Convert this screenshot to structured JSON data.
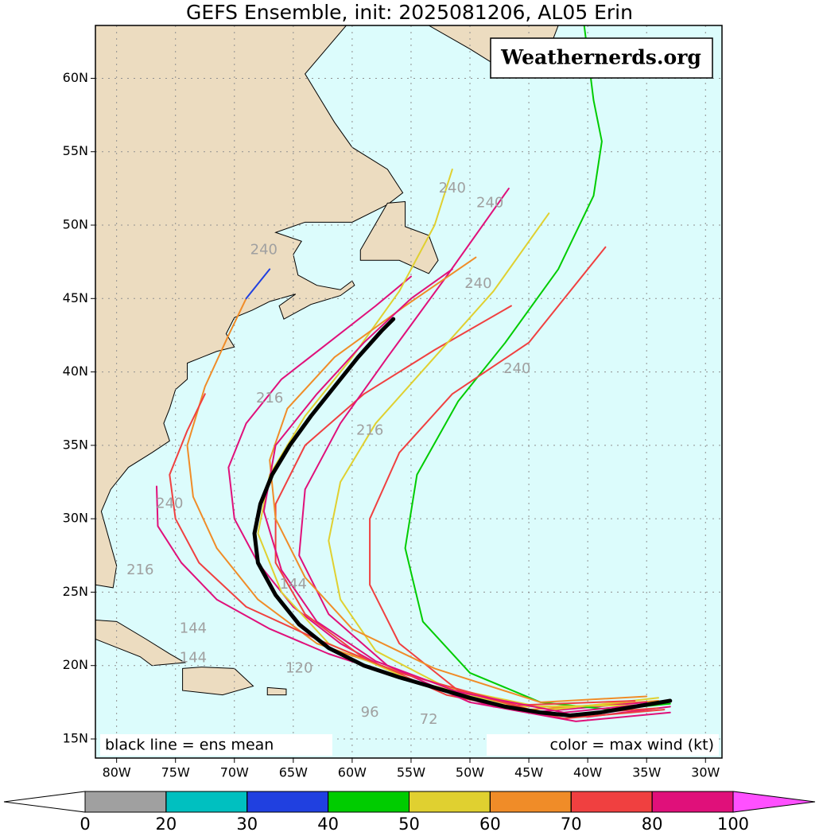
{
  "chart_data": {
    "type": "map",
    "title": "GEFS Ensemble, init: 2025081206, AL05 Erin",
    "watermark": "Weathernerds.org",
    "annotations": [
      "black line = ens mean",
      "color = max wind (kt)"
    ],
    "xlim": [
      -81.8,
      -28.6
    ],
    "ylim": [
      13.7,
      63.6
    ],
    "xticks": [
      {
        "value": -80,
        "label": "80W"
      },
      {
        "value": -75,
        "label": "75W"
      },
      {
        "value": -70,
        "label": "70W"
      },
      {
        "value": -65,
        "label": "65W"
      },
      {
        "value": -60,
        "label": "60W"
      },
      {
        "value": -55,
        "label": "55W"
      },
      {
        "value": -50,
        "label": "50W"
      },
      {
        "value": -45,
        "label": "45W"
      },
      {
        "value": -40,
        "label": "40W"
      },
      {
        "value": -35,
        "label": "35W"
      },
      {
        "value": -30,
        "label": "30W"
      }
    ],
    "yticks": [
      {
        "value": 15,
        "label": "15N"
      },
      {
        "value": 20,
        "label": "20N"
      },
      {
        "value": 25,
        "label": "25N"
      },
      {
        "value": 30,
        "label": "30N"
      },
      {
        "value": 35,
        "label": "35N"
      },
      {
        "value": 40,
        "label": "40N"
      },
      {
        "value": 45,
        "label": "45N"
      },
      {
        "value": 50,
        "label": "50N"
      },
      {
        "value": 55,
        "label": "55N"
      },
      {
        "value": 60,
        "label": "60N"
      }
    ],
    "grid": true,
    "tracks": [
      {
        "color": "#e0107a",
        "lon": [
          -33,
          -40,
          -48,
          -56,
          -61,
          -65,
          -68,
          -70,
          -70.5,
          -69,
          -66,
          -62,
          -58,
          -55
        ],
        "lat": [
          17.2,
          16.5,
          17.2,
          19.3,
          21.5,
          24,
          27,
          30,
          33.5,
          36.5,
          39.5,
          42,
          44.5,
          46.5
        ]
      },
      {
        "color": "#f04040",
        "lon": [
          -33.5,
          -42,
          -52,
          -59,
          -64,
          -66.5,
          -66.5,
          -64,
          -59,
          -53,
          -46.5
        ],
        "lat": [
          17,
          16.4,
          18,
          20.5,
          23.5,
          27,
          31,
          35,
          38.5,
          41.5,
          44.5
        ]
      },
      {
        "color": "#f08c28",
        "lon": [
          -34,
          -45,
          -55,
          -63,
          -68,
          -71.5,
          -73.5,
          -74,
          -72.5,
          -70.5,
          -69
        ],
        "lat": [
          17.6,
          17,
          19.3,
          21.5,
          24.5,
          28,
          31.5,
          35,
          39,
          42.5,
          45
        ]
      },
      {
        "color": "#2040e0",
        "lon": [
          -69,
          -67
        ],
        "lat": [
          45,
          47
        ]
      },
      {
        "color": "#e0107a",
        "lon": [
          -35,
          -45,
          -54,
          -62,
          -67,
          -71.5,
          -74.5,
          -76.5,
          -76.6
        ],
        "lat": [
          17.5,
          16.8,
          18.7,
          20.8,
          22.5,
          24.5,
          27,
          29.5,
          32.2
        ]
      },
      {
        "color": "#00cc00",
        "lon": [
          -33,
          -38,
          -44,
          -50,
          -54,
          -55.5,
          -54.5,
          -51,
          -47,
          -42.5,
          -39.5,
          -38.8,
          -39.5,
          -40.3
        ],
        "lat": [
          17.4,
          17,
          17.5,
          19.5,
          23,
          28,
          33,
          38,
          42,
          47,
          52,
          55.7,
          58.5,
          63.6
        ]
      },
      {
        "color": "#e0d030",
        "lon": [
          -34,
          -43,
          -52,
          -58,
          -61,
          -62,
          -61,
          -58,
          -53,
          -48,
          -43.3
        ],
        "lat": [
          17.8,
          17,
          18.5,
          21,
          24.5,
          28.5,
          32.5,
          36.5,
          41,
          45.5,
          50.8
        ]
      },
      {
        "color": "#e0d030",
        "lon": [
          -35,
          -46,
          -55,
          -62,
          -66,
          -68,
          -67,
          -64,
          -60,
          -56,
          -53,
          -51.5
        ],
        "lat": [
          17.3,
          17.2,
          19,
          21.5,
          25,
          29,
          33,
          37,
          41,
          45.5,
          50,
          53.8
        ]
      },
      {
        "color": "#e0107a",
        "lon": [
          -33,
          -41,
          -50,
          -57,
          -62,
          -64.5,
          -64,
          -61,
          -57,
          -52,
          -46.7
        ],
        "lat": [
          16.8,
          16.2,
          17.5,
          20,
          23.5,
          27.5,
          32,
          36.5,
          41,
          46.5,
          52.5
        ]
      },
      {
        "color": "#f04040",
        "lon": [
          -34,
          -43,
          -51,
          -56,
          -58.5,
          -58.5,
          -56,
          -51.5,
          -45,
          -38.5
        ],
        "lat": [
          17.1,
          16.6,
          18.3,
          21.5,
          25.5,
          30,
          34.5,
          38.5,
          42,
          48.5
        ]
      },
      {
        "color": "#f08c28",
        "lon": [
          -35,
          -44,
          -53,
          -60,
          -64,
          -66.5,
          -67,
          -65.5,
          -61.5,
          -55.5,
          -49.5
        ],
        "lat": [
          17.9,
          17.5,
          19.8,
          22.5,
          26,
          30,
          34,
          37.5,
          41,
          44.5,
          47.8
        ]
      },
      {
        "color": "#f04040",
        "lon": [
          -36,
          -46,
          -56,
          -63,
          -69,
          -73,
          -75,
          -75.5,
          -74,
          -72.5
        ],
        "lat": [
          17.6,
          17.3,
          19.5,
          21.8,
          24,
          27,
          30,
          33,
          36,
          38.5
        ]
      },
      {
        "color": "#e0107a",
        "lon": [
          -33.5,
          -42,
          -51,
          -58,
          -63,
          -66,
          -67.5,
          -66.5,
          -63,
          -59,
          -55,
          -51.5
        ],
        "lat": [
          17.5,
          16.8,
          18.2,
          20.3,
          23,
          26.5,
          30.5,
          35,
          38.5,
          42,
          45,
          47
        ]
      }
    ],
    "mean_track": {
      "color": "#000000",
      "lon": [
        -33,
        -36,
        -39,
        -41.5,
        -44,
        -47,
        -50,
        -53,
        -56,
        -59,
        -62,
        -64.5,
        -66.5,
        -68,
        -68.3,
        -67.8,
        -66.8,
        -65.3,
        -63.5,
        -61.5,
        -59.5,
        -57.5,
        -56.5
      ],
      "lat": [
        17.6,
        17.2,
        16.8,
        16.6,
        16.8,
        17.2,
        17.8,
        18.5,
        19.2,
        20,
        21.2,
        22.8,
        24.8,
        27,
        29,
        31,
        33,
        35,
        37,
        39,
        41,
        42.8,
        43.6
      ]
    },
    "hour_labels": [
      {
        "text": "240",
        "lon": -51.5,
        "lat": 52.5
      },
      {
        "text": "240",
        "lon": -48.3,
        "lat": 51.5
      },
      {
        "text": "240",
        "lon": -75.5,
        "lat": 31
      },
      {
        "text": "240",
        "lon": -46,
        "lat": 40.2
      },
      {
        "text": "240",
        "lon": -67.5,
        "lat": 48.3
      },
      {
        "text": "240",
        "lon": -49.3,
        "lat": 46
      },
      {
        "text": "216",
        "lon": -67,
        "lat": 38.2
      },
      {
        "text": "216",
        "lon": -58.5,
        "lat": 36
      },
      {
        "text": "216",
        "lon": -78,
        "lat": 26.5
      },
      {
        "text": "144",
        "lon": -73.5,
        "lat": 22.5
      },
      {
        "text": "144",
        "lon": -73.5,
        "lat": 20.5
      },
      {
        "text": "144",
        "lon": -65,
        "lat": 25.5
      },
      {
        "text": "120",
        "lon": -64.5,
        "lat": 19.8
      },
      {
        "text": "96",
        "lon": -58.5,
        "lat": 16.8
      },
      {
        "text": "72",
        "lon": -53.5,
        "lat": 16.3
      }
    ],
    "colorbar": {
      "bounds": [
        0,
        20,
        30,
        40,
        50,
        60,
        70,
        80,
        100
      ],
      "colors": [
        "#a0a0a0",
        "#00c0c0",
        "#2040e0",
        "#00cc00",
        "#e0d030",
        "#f08c28",
        "#f04040",
        "#e0107a"
      ],
      "under_color": "#ffffff",
      "over_color": "#ff50ff"
    }
  }
}
